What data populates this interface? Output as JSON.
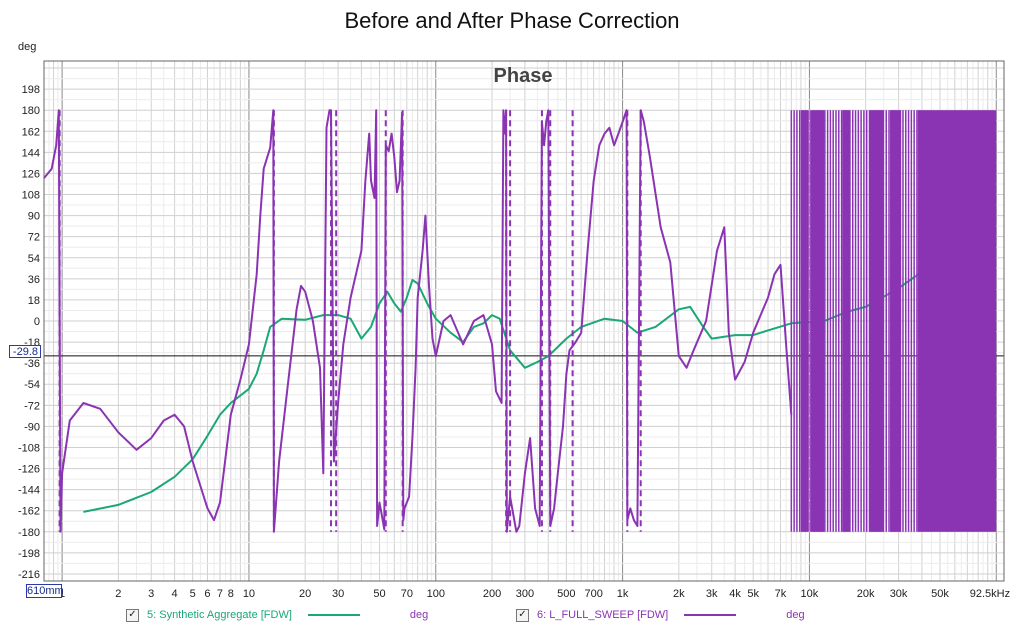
{
  "chart_data": {
    "type": "line",
    "title": "Before and After Phase Correction",
    "panel_label": "Phase",
    "y_unit": "deg",
    "x_scale": "log",
    "x_unit": "Hz",
    "xlim": [
      0.8,
      110000
    ],
    "ylim": [
      -222,
      222
    ],
    "y_ticks": [
      198,
      180,
      162,
      144,
      126,
      108,
      90,
      72,
      54,
      36,
      18,
      0,
      -18,
      -36,
      -54,
      -72,
      -90,
      -108,
      -126,
      -144,
      -162,
      -180,
      -198,
      -216
    ],
    "x_ticks": [
      {
        "v": 1,
        "label": "1"
      },
      {
        "v": 2,
        "label": "2"
      },
      {
        "v": 3,
        "label": "3"
      },
      {
        "v": 4,
        "label": "4"
      },
      {
        "v": 5,
        "label": "5"
      },
      {
        "v": 6,
        "label": "6"
      },
      {
        "v": 7,
        "label": "7"
      },
      {
        "v": 8,
        "label": "8"
      },
      {
        "v": 10,
        "label": "10"
      },
      {
        "v": 20,
        "label": "20"
      },
      {
        "v": 30,
        "label": "30"
      },
      {
        "v": 50,
        "label": "50"
      },
      {
        "v": 70,
        "label": "70"
      },
      {
        "v": 100,
        "label": "100"
      },
      {
        "v": 200,
        "label": "200"
      },
      {
        "v": 300,
        "label": "300"
      },
      {
        "v": 500,
        "label": "500"
      },
      {
        "v": 700,
        "label": "700"
      },
      {
        "v": 1000,
        "label": "1k"
      },
      {
        "v": 2000,
        "label": "2k"
      },
      {
        "v": 3000,
        "label": "3k"
      },
      {
        "v": 4000,
        "label": "4k"
      },
      {
        "v": 5000,
        "label": "5k"
      },
      {
        "v": 7000,
        "label": "7k"
      },
      {
        "v": 10000,
        "label": "10k"
      },
      {
        "v": 20000,
        "label": "20k"
      },
      {
        "v": 30000,
        "label": "30k"
      },
      {
        "v": 50000,
        "label": "50k"
      },
      {
        "v": 92500,
        "label": "92.5kHz"
      }
    ],
    "cursor": {
      "y_value": "-29.8",
      "x_value": "610mm",
      "y": -29.8
    },
    "grid": true,
    "legend_position": "bottom",
    "series": [
      {
        "name": "5: Synthetic Aggregate [FDW]",
        "unit": "deg",
        "color": "#1aa874",
        "checked": true,
        "style": "solid",
        "points": [
          [
            1.3,
            -163
          ],
          [
            2,
            -157
          ],
          [
            3,
            -146
          ],
          [
            4,
            -133
          ],
          [
            5,
            -118
          ],
          [
            6,
            -98
          ],
          [
            7,
            -80
          ],
          [
            8,
            -70
          ],
          [
            10,
            -58
          ],
          [
            11,
            -45
          ],
          [
            12,
            -25
          ],
          [
            13,
            -5
          ],
          [
            15,
            2
          ],
          [
            20,
            1
          ],
          [
            25,
            5
          ],
          [
            30,
            5
          ],
          [
            35,
            2
          ],
          [
            40,
            -15
          ],
          [
            45,
            -5
          ],
          [
            50,
            15
          ],
          [
            55,
            25
          ],
          [
            60,
            15
          ],
          [
            65,
            8
          ],
          [
            70,
            20
          ],
          [
            75,
            35
          ],
          [
            80,
            32
          ],
          [
            90,
            15
          ],
          [
            100,
            2
          ],
          [
            120,
            -10
          ],
          [
            140,
            -18
          ],
          [
            160,
            -5
          ],
          [
            180,
            -2
          ],
          [
            200,
            5
          ],
          [
            220,
            2
          ],
          [
            250,
            -25
          ],
          [
            300,
            -40
          ],
          [
            350,
            -35
          ],
          [
            400,
            -30
          ],
          [
            500,
            -15
          ],
          [
            600,
            -5
          ],
          [
            800,
            2
          ],
          [
            1000,
            0
          ],
          [
            1200,
            -10
          ],
          [
            1500,
            -5
          ],
          [
            2000,
            10
          ],
          [
            2300,
            12
          ],
          [
            2700,
            -5
          ],
          [
            3000,
            -15
          ],
          [
            4000,
            -12
          ],
          [
            5000,
            -12
          ],
          [
            6000,
            -8
          ],
          [
            8000,
            -2
          ],
          [
            12000,
            0
          ],
          [
            16000,
            8
          ],
          [
            20000,
            12
          ],
          [
            30000,
            28
          ],
          [
            40000,
            42
          ],
          [
            50000,
            50
          ],
          [
            70000,
            60
          ],
          [
            100000,
            70
          ]
        ]
      },
      {
        "name": "6: L_FULL_SWEEP [FDW]",
        "unit": "deg",
        "color": "#8a34b4",
        "checked": true,
        "style": "solid",
        "points": [
          [
            0.8,
            122
          ],
          [
            0.88,
            130
          ],
          [
            0.93,
            150
          ],
          [
            0.96,
            180
          ],
          [
            0.98,
            -180
          ],
          [
            1.0,
            -130
          ],
          [
            1.1,
            -85
          ],
          [
            1.3,
            -70
          ],
          [
            1.6,
            -75
          ],
          [
            2,
            -95
          ],
          [
            2.5,
            -110
          ],
          [
            3,
            -100
          ],
          [
            3.5,
            -85
          ],
          [
            4,
            -80
          ],
          [
            4.5,
            -90
          ],
          [
            5,
            -120
          ],
          [
            6,
            -160
          ],
          [
            6.5,
            -170
          ],
          [
            7,
            -155
          ],
          [
            8,
            -80
          ],
          [
            9,
            -50
          ],
          [
            10,
            -20
          ],
          [
            11,
            40
          ],
          [
            11.5,
            90
          ],
          [
            12,
            130
          ],
          [
            13,
            148
          ],
          [
            13.5,
            180
          ],
          [
            13.6,
            -180
          ],
          [
            14.5,
            -120
          ],
          [
            16,
            -60
          ],
          [
            18,
            10
          ],
          [
            19,
            30
          ],
          [
            20,
            25
          ],
          [
            22,
            0
          ],
          [
            24,
            -40
          ],
          [
            25,
            -130
          ],
          [
            26,
            165
          ],
          [
            27,
            180
          ],
          [
            27.5,
            180
          ],
          [
            28.5,
            -120
          ],
          [
            30,
            -70
          ],
          [
            32,
            -20
          ],
          [
            35,
            20
          ],
          [
            40,
            60
          ],
          [
            42,
            120
          ],
          [
            43,
            140
          ],
          [
            44,
            160
          ],
          [
            45,
            120
          ],
          [
            47,
            105
          ],
          [
            48,
            180
          ],
          [
            48.5,
            -175
          ],
          [
            50,
            -155
          ],
          [
            52,
            -170
          ],
          [
            53,
            -178
          ],
          [
            54,
            150
          ],
          [
            56,
            145
          ],
          [
            58,
            160
          ],
          [
            60,
            140
          ],
          [
            62,
            110
          ],
          [
            64,
            120
          ],
          [
            66,
            178
          ],
          [
            67,
            -170
          ],
          [
            68,
            -160
          ],
          [
            72,
            -150
          ],
          [
            75,
            -100
          ],
          [
            78,
            -40
          ],
          [
            80,
            20
          ],
          [
            85,
            60
          ],
          [
            88,
            90
          ],
          [
            92,
            30
          ],
          [
            96,
            -15
          ],
          [
            100,
            -30
          ],
          [
            110,
            0
          ],
          [
            120,
            5
          ],
          [
            140,
            -20
          ],
          [
            160,
            0
          ],
          [
            180,
            5
          ],
          [
            200,
            -20
          ],
          [
            210,
            -60
          ],
          [
            225,
            -70
          ],
          [
            230,
            180
          ],
          [
            235,
            160
          ],
          [
            238,
            180
          ],
          [
            240,
            -180
          ],
          [
            250,
            -150
          ],
          [
            270,
            -180
          ],
          [
            280,
            -175
          ],
          [
            300,
            -130
          ],
          [
            320,
            -100
          ],
          [
            340,
            -160
          ],
          [
            360,
            -175
          ],
          [
            370,
            170
          ],
          [
            380,
            150
          ],
          [
            390,
            170
          ],
          [
            400,
            180
          ],
          [
            410,
            -175
          ],
          [
            430,
            -160
          ],
          [
            450,
            -130
          ],
          [
            480,
            -90
          ],
          [
            500,
            -45
          ],
          [
            520,
            -25
          ],
          [
            560,
            -18
          ],
          [
            600,
            -10
          ],
          [
            650,
            60
          ],
          [
            700,
            120
          ],
          [
            750,
            150
          ],
          [
            800,
            160
          ],
          [
            850,
            165
          ],
          [
            900,
            150
          ],
          [
            950,
            160
          ],
          [
            1000,
            170
          ],
          [
            1050,
            180
          ],
          [
            1060,
            -170
          ],
          [
            1100,
            -160
          ],
          [
            1150,
            -170
          ],
          [
            1200,
            -175
          ],
          [
            1250,
            180
          ],
          [
            1300,
            170
          ],
          [
            1400,
            140
          ],
          [
            1600,
            80
          ],
          [
            1800,
            50
          ],
          [
            2000,
            -30
          ],
          [
            2200,
            -40
          ],
          [
            2400,
            -25
          ],
          [
            2800,
            0
          ],
          [
            3200,
            60
          ],
          [
            3500,
            80
          ],
          [
            3700,
            -10
          ],
          [
            4000,
            -50
          ],
          [
            4500,
            -35
          ],
          [
            5000,
            -10
          ],
          [
            6000,
            20
          ],
          [
            6500,
            40
          ],
          [
            7000,
            48
          ],
          [
            7500,
            -20
          ],
          [
            8000,
            -80
          ]
        ]
      }
    ],
    "phase_wraps": {
      "series_1": [
        0.97,
        13.6,
        27.5,
        29.3,
        54.0,
        66.5,
        238,
        250,
        370,
        410,
        540,
        1060,
        1250
      ],
      "series_2": [
        1.17,
        1.22
      ]
    },
    "high_frequency_band": {
      "series": "6: L_FULL_SWEEP [FDW]",
      "range_hz": [
        8000,
        100000
      ],
      "ylim": [
        -180,
        180
      ]
    }
  },
  "legend": {
    "item1_label": "5: Synthetic Aggregate [FDW]",
    "item1_unit": "deg",
    "item1_color": "#1aa874",
    "item2_label": "6: L_FULL_SWEEP [FDW]",
    "item2_unit": "deg",
    "item2_color": "#8a34b4",
    "check_mark": "✓"
  }
}
